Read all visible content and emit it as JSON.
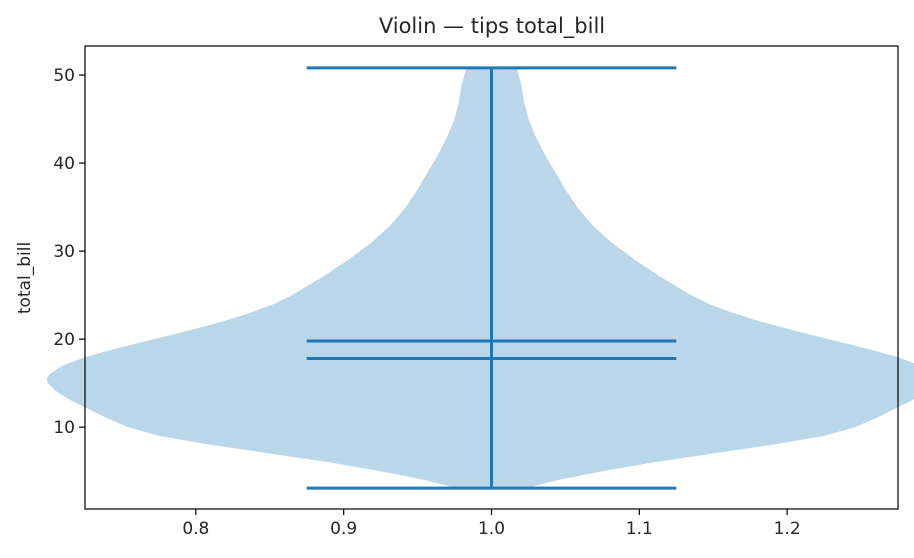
{
  "chart_data": {
    "type": "violin",
    "title": "Violin — tips total_bill",
    "xlabel": "",
    "ylabel": "total_bill",
    "xlim": [
      0.725,
      1.275
    ],
    "ylim": [
      0.7,
      53.3
    ],
    "x_ticks": [
      0.8,
      0.9,
      1.0,
      1.1,
      1.2
    ],
    "x_tick_labels": [
      "0.8",
      "0.9",
      "1.0",
      "1.1",
      "1.2"
    ],
    "y_ticks": [
      10,
      20,
      30,
      40,
      50
    ],
    "y_tick_labels": [
      "10",
      "20",
      "30",
      "40",
      "50"
    ],
    "grid": false,
    "colors": {
      "body": "#bad6e9",
      "lines": "#1f77b4"
    },
    "violin": {
      "position": 1.0,
      "width": 0.5,
      "min": 3.07,
      "max": 50.81,
      "mean": 19.79,
      "median": 17.8,
      "density": [
        {
          "y": 3.07,
          "half_width": 0.024
        },
        {
          "y": 4.0,
          "half_width": 0.045
        },
        {
          "y": 5.0,
          "half_width": 0.075
        },
        {
          "y": 6.0,
          "half_width": 0.11
        },
        {
          "y": 7.0,
          "half_width": 0.15
        },
        {
          "y": 8.0,
          "half_width": 0.19
        },
        {
          "y": 9.0,
          "half_width": 0.225
        },
        {
          "y": 10.0,
          "half_width": 0.246
        },
        {
          "y": 11.0,
          "half_width": 0.26
        },
        {
          "y": 12.0,
          "half_width": 0.272
        },
        {
          "y": 13.0,
          "half_width": 0.284
        },
        {
          "y": 14.0,
          "half_width": 0.294
        },
        {
          "y": 15.0,
          "half_width": 0.3
        },
        {
          "y": 15.5,
          "half_width": 0.301
        },
        {
          "y": 16.0,
          "half_width": 0.299
        },
        {
          "y": 17.0,
          "half_width": 0.29
        },
        {
          "y": 18.0,
          "half_width": 0.274
        },
        {
          "y": 19.0,
          "half_width": 0.252
        },
        {
          "y": 20.0,
          "half_width": 0.228
        },
        {
          "y": 21.0,
          "half_width": 0.204
        },
        {
          "y": 22.0,
          "half_width": 0.182
        },
        {
          "y": 23.0,
          "half_width": 0.163
        },
        {
          "y": 24.0,
          "half_width": 0.147
        },
        {
          "y": 25.0,
          "half_width": 0.135
        },
        {
          "y": 27.0,
          "half_width": 0.115
        },
        {
          "y": 29.0,
          "half_width": 0.097
        },
        {
          "y": 31.0,
          "half_width": 0.081
        },
        {
          "y": 33.0,
          "half_width": 0.068
        },
        {
          "y": 35.0,
          "half_width": 0.058
        },
        {
          "y": 37.0,
          "half_width": 0.05
        },
        {
          "y": 39.0,
          "half_width": 0.043
        },
        {
          "y": 41.0,
          "half_width": 0.036
        },
        {
          "y": 43.0,
          "half_width": 0.03
        },
        {
          "y": 45.0,
          "half_width": 0.025
        },
        {
          "y": 47.0,
          "half_width": 0.022
        },
        {
          "y": 49.0,
          "half_width": 0.02
        },
        {
          "y": 50.81,
          "half_width": 0.017
        }
      ]
    }
  }
}
